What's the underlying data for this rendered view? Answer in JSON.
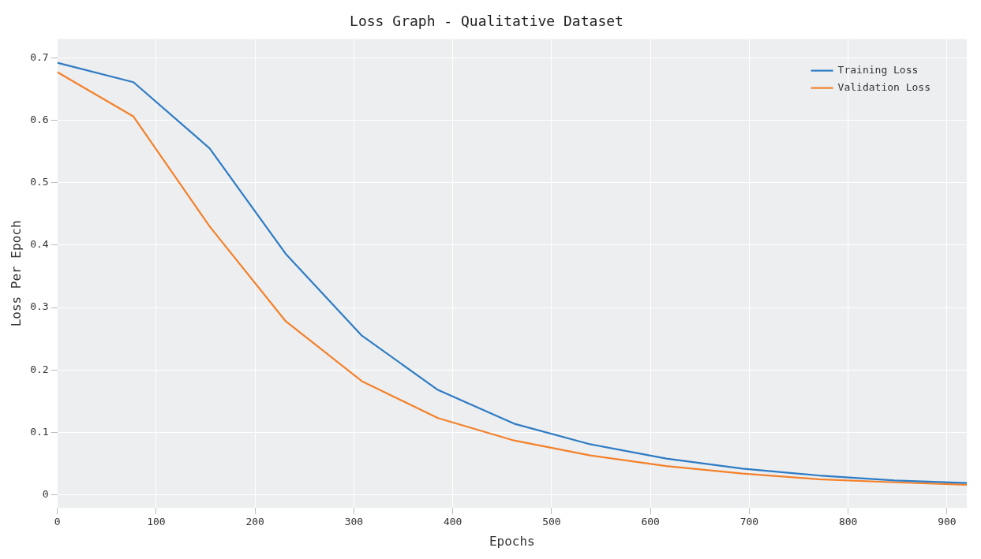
{
  "chart_data": {
    "type": "line",
    "title": "Loss Graph - Qualitative Dataset",
    "xlabel": "Epochs",
    "ylabel": "Loss Per Epoch",
    "x": [
      0,
      77,
      154,
      231,
      308,
      385,
      462,
      539,
      616,
      693,
      770,
      847,
      920
    ],
    "series": [
      {
        "name": "Training Loss",
        "color": "#2e7bc4",
        "values": [
          0.692,
          0.661,
          0.555,
          0.386,
          0.255,
          0.168,
          0.114,
          0.081,
          0.058,
          0.042,
          0.031,
          0.023,
          0.019
        ]
      },
      {
        "name": "Validation Loss",
        "color": "#f4812a",
        "values": [
          0.677,
          0.606,
          0.43,
          0.278,
          0.182,
          0.123,
          0.087,
          0.063,
          0.046,
          0.034,
          0.025,
          0.02,
          0.016
        ]
      }
    ],
    "xlim": [
      0,
      920
    ],
    "xticks": [
      0,
      100,
      200,
      300,
      400,
      500,
      600,
      700,
      800,
      900
    ],
    "ylim": [
      -0.021,
      0.73
    ],
    "yticks": [
      0,
      0.1,
      0.2,
      0.3,
      0.4,
      0.5,
      0.6,
      0.7
    ],
    "grid": true,
    "legend": "top right",
    "marker": "none",
    "line_style": "solid"
  }
}
